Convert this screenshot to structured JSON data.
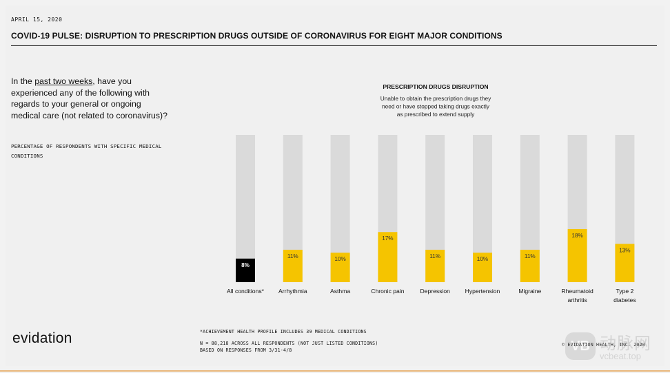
{
  "header": {
    "date": "APRIL 15, 2020",
    "title": "COVID-19 PULSE: DISRUPTION TO PRESCRIPTION DRUGS OUTSIDE OF CORONAVIRUS FOR EIGHT MAJOR CONDITIONS"
  },
  "question": {
    "before": "In the ",
    "underlined": "past two weeks",
    "after": ", have you experienced any of the following with regards to your general or ongoing medical care (not related to coronavirus)?",
    "subnote": "PERCENTAGE OF RESPONDENTS WITH SPECIFIC MEDICAL CONDITIONS"
  },
  "chart_data": {
    "type": "bar",
    "title": "PRESCRIPTION DRUGS DISRUPTION",
    "subtitle": "Unable to obtain the prescription drugs they need or have stopped taking drugs exactly as prescribed to extend supply",
    "subtitle_lines": [
      "Unable to obtain the prescription drugs they",
      "need or have stopped taking drugs exactly",
      "as prescribed to extend supply"
    ],
    "categories": [
      "All conditions*",
      "Arrhythmia",
      "Asthma",
      "Chronic pain",
      "Depression",
      "Hypertension",
      "Migraine",
      "Rheumatoid arthritis",
      "Type 2 diabetes"
    ],
    "category_lines": [
      [
        "All conditions*"
      ],
      [
        "Arrhythmia"
      ],
      [
        "Asthma"
      ],
      [
        "Chronic pain"
      ],
      [
        "Depression"
      ],
      [
        "Hypertension"
      ],
      [
        "Migraine"
      ],
      [
        "Rheumatoid",
        "arthritis"
      ],
      [
        "Type 2",
        "diabetes"
      ]
    ],
    "values": [
      8,
      11,
      10,
      17,
      11,
      10,
      11,
      18,
      13
    ],
    "value_labels": [
      "8%",
      "11%",
      "10%",
      "17%",
      "11%",
      "10%",
      "11%",
      "18%",
      "13%"
    ],
    "ylim": [
      0,
      50
    ],
    "grid": false,
    "legend": "none",
    "colors": {
      "highlight": "#000000",
      "bar": "#f5c400",
      "track": "#dadada",
      "label_on_dark": "#ffffff",
      "label_on_light": "#333333"
    }
  },
  "footer": {
    "note_asterisk": "*ACHIEVEMENT HEALTH PROFILE INCLUDES 39 MEDICAL CONDITIONS",
    "note_n": "N = 88,218 ACROSS ALL RESPONDENTS (NOT JUST LISTED CONDITIONS)",
    "note_based": "BASED ON RESPONSES FROM 3/31-4/8",
    "logo": "evidation",
    "copyright": "© EVIDATION HEALTH, INC. 2020"
  },
  "watermark": {
    "icon_text": "VB",
    "cn": "动脉网",
    "en": "vcbeat.top"
  }
}
